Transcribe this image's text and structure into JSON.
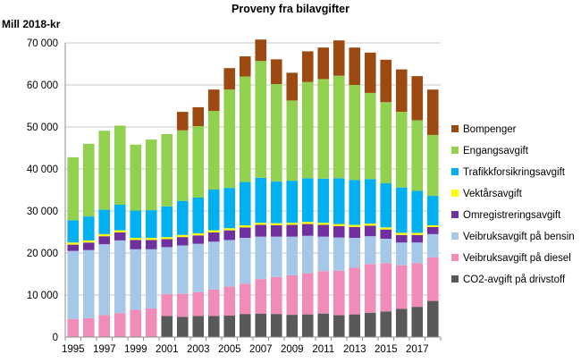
{
  "chart_data": {
    "type": "bar",
    "stacked": true,
    "title": "Proveny fra bilavgifter",
    "ylabel": "Mill 2018-kr",
    "xlabel": "",
    "ylim": [
      0,
      70000
    ],
    "y_ticks": [
      "0",
      "10 000",
      "20 000",
      "30 000",
      "40 000",
      "50 000",
      "60 000",
      "70 000"
    ],
    "y_tick_values": [
      0,
      10000,
      20000,
      30000,
      40000,
      50000,
      60000,
      70000
    ],
    "x_tick_labels": [
      "1995",
      "1997",
      "1999",
      "2001",
      "2003",
      "2005",
      "2007",
      "2009",
      "2011",
      "2013",
      "2015",
      "2017"
    ],
    "grid": true,
    "legend_position": "right",
    "categories": [
      "1995",
      "1996",
      "1997",
      "1998",
      "1999",
      "2000",
      "2001",
      "2002",
      "2003",
      "2004",
      "2005",
      "2006",
      "2007",
      "2008",
      "2009",
      "2010",
      "2011",
      "2012",
      "2013",
      "2014",
      "2015",
      "2016",
      "2017",
      "2018"
    ],
    "series": [
      {
        "name": "CO2-avgift på drivstoff",
        "color": "#595959",
        "values": [
          0,
          0,
          0,
          0,
          0,
          0,
          5000,
          4800,
          5000,
          5000,
          5100,
          5500,
          5600,
          5500,
          5300,
          5400,
          5600,
          5200,
          5400,
          5800,
          6100,
          6700,
          7200,
          8600
        ]
      },
      {
        "name": "Veibruksavgift på diesel",
        "color": "#f18cb8",
        "values": [
          4300,
          4500,
          5200,
          5700,
          6500,
          6800,
          5200,
          5500,
          5700,
          6300,
          6900,
          7200,
          8200,
          8800,
          9400,
          9800,
          10100,
          10600,
          11100,
          11600,
          11500,
          10400,
          10400,
          10400
        ]
      },
      {
        "name": "Veibruksavgift på bensin",
        "color": "#a6c8e8",
        "values": [
          16200,
          16200,
          16900,
          17300,
          14400,
          14100,
          11200,
          11500,
          11500,
          11400,
          11100,
          10900,
          10100,
          9600,
          9200,
          8900,
          8200,
          7900,
          7100,
          6600,
          5800,
          5400,
          4900,
          5500
        ]
      },
      {
        "name": "Omregistreringsavgift",
        "color": "#7030a0",
        "values": [
          1500,
          1800,
          1900,
          1900,
          2200,
          2200,
          1900,
          2000,
          2000,
          2200,
          2300,
          2500,
          2800,
          2700,
          2800,
          2800,
          2800,
          2700,
          2600,
          2500,
          2200,
          1800,
          1800,
          1700
        ]
      },
      {
        "name": "Vektårsavgift",
        "color": "#ffff00",
        "values": [
          500,
          500,
          500,
          500,
          500,
          500,
          500,
          500,
          500,
          500,
          500,
          500,
          500,
          500,
          500,
          500,
          500,
          500,
          500,
          500,
          500,
          500,
          500,
          400
        ]
      },
      {
        "name": "Trafikkforsikringsavgift",
        "color": "#00b0f0",
        "values": [
          5300,
          5700,
          5800,
          6100,
          6500,
          6600,
          7300,
          8100,
          8500,
          9700,
          9600,
          10300,
          10700,
          9900,
          10000,
          10400,
          10500,
          10900,
          10700,
          10600,
          10500,
          10800,
          10000,
          7000
        ]
      },
      {
        "name": "Engangsavgift",
        "color": "#92d050",
        "values": [
          15000,
          17300,
          18800,
          18800,
          15700,
          16800,
          17200,
          16800,
          17000,
          18700,
          23400,
          25100,
          27800,
          23200,
          19100,
          22900,
          23700,
          24400,
          22600,
          20500,
          19300,
          18000,
          16800,
          14500
        ]
      },
      {
        "name": "Bompenger",
        "color": "#9c4a12",
        "values": [
          0,
          0,
          0,
          0,
          0,
          0,
          0,
          4400,
          4500,
          5100,
          5100,
          4800,
          5100,
          5900,
          6600,
          7300,
          7500,
          8400,
          8900,
          9600,
          10100,
          10100,
          10500,
          10800
        ]
      }
    ]
  }
}
